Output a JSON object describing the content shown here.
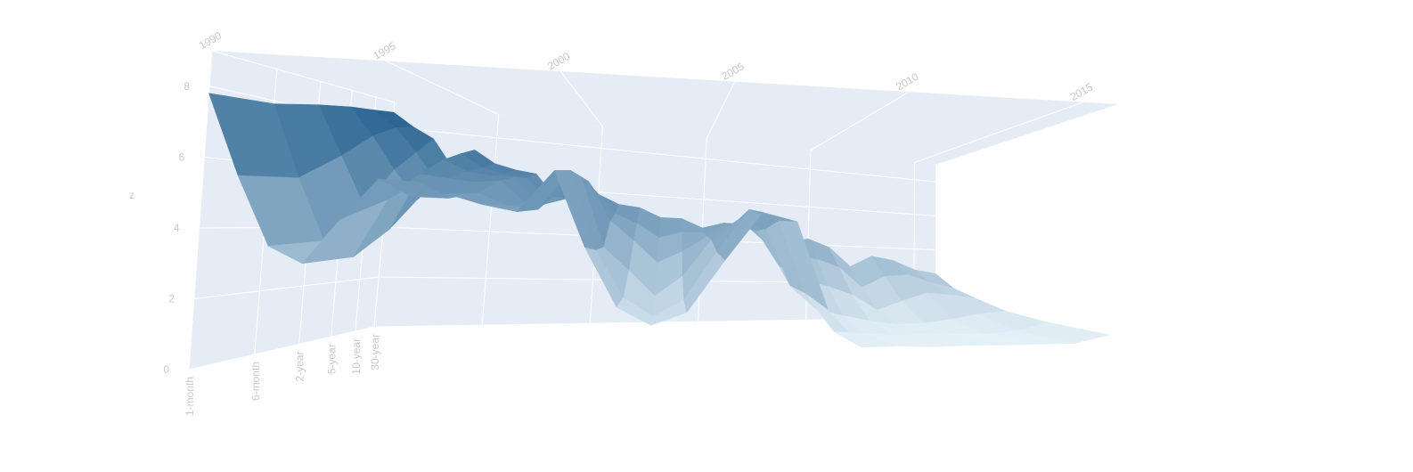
{
  "chart_data": {
    "type": "surface3d",
    "x": [
      1990,
      1991,
      1992,
      1993,
      1994,
      1995,
      1996,
      1997,
      1998,
      1999,
      2000,
      2001,
      2002,
      2003,
      2004,
      2005,
      2006,
      2007,
      2008,
      2009,
      2010,
      2011,
      2012,
      2013,
      2014,
      2015,
      2016
    ],
    "y": [
      "1-month",
      "6-month",
      "2-year",
      "5-year",
      "10-year",
      "30-year"
    ],
    "z": [
      [
        7.8,
        5.5,
        3.5,
        3.0,
        4.3,
        5.5,
        5.0,
        5.1,
        4.8,
        4.6,
        5.9,
        3.5,
        1.6,
        1.0,
        1.4,
        3.1,
        4.7,
        4.4,
        1.4,
        0.1,
        0.1,
        0.04,
        0.06,
        0.03,
        0.03,
        0.02,
        0.3
      ],
      [
        7.9,
        5.6,
        3.6,
        3.1,
        5.0,
        5.6,
        5.1,
        5.3,
        4.9,
        4.8,
        6.2,
        3.4,
        1.7,
        1.0,
        1.6,
        3.4,
        5.0,
        4.6,
        1.8,
        0.3,
        0.2,
        0.1,
        0.13,
        0.09,
        0.06,
        0.16,
        0.5
      ],
      [
        8.2,
        6.5,
        4.8,
        4.0,
        6.0,
        5.9,
        5.8,
        5.9,
        5.1,
        5.4,
        6.2,
        3.5,
        2.6,
        1.6,
        2.4,
        3.9,
        4.8,
        4.4,
        2.0,
        1.0,
        0.7,
        0.45,
        0.27,
        0.31,
        0.46,
        0.69,
        0.8
      ],
      [
        8.4,
        7.4,
        6.2,
        5.1,
        6.7,
        6.3,
        6.2,
        6.2,
        5.1,
        5.5,
        6.2,
        4.6,
        3.8,
        2.9,
        3.4,
        4.1,
        4.7,
        4.4,
        2.8,
        2.2,
        1.9,
        1.5,
        0.76,
        1.2,
        1.6,
        1.5,
        1.3
      ],
      [
        8.5,
        7.9,
        7.0,
        5.9,
        7.1,
        6.6,
        6.4,
        6.3,
        5.3,
        5.6,
        6.0,
        5.0,
        4.6,
        4.0,
        4.3,
        4.3,
        4.8,
        4.6,
        3.7,
        3.3,
        3.2,
        2.8,
        1.8,
        2.4,
        2.5,
        2.1,
        1.8
      ],
      [
        8.6,
        8.1,
        7.7,
        6.6,
        7.4,
        6.9,
        6.7,
        6.6,
        5.6,
        5.9,
        5.9,
        5.5,
        5.4,
        5.0,
        5.0,
        4.6,
        4.9,
        4.8,
        4.3,
        4.1,
        4.3,
        3.9,
        2.9,
        3.5,
        3.3,
        2.8,
        2.6
      ]
    ],
    "xlim": [
      1990,
      2016
    ],
    "xticks": [
      1990,
      1995,
      2000,
      2005,
      2010,
      2015
    ],
    "zlim": [
      0,
      9
    ],
    "zticks": [
      0,
      2,
      4,
      6,
      8
    ],
    "zlabel": "z",
    "colorscale": [
      "#e6f1f8",
      "#1c5a8a"
    ],
    "grid": true
  }
}
